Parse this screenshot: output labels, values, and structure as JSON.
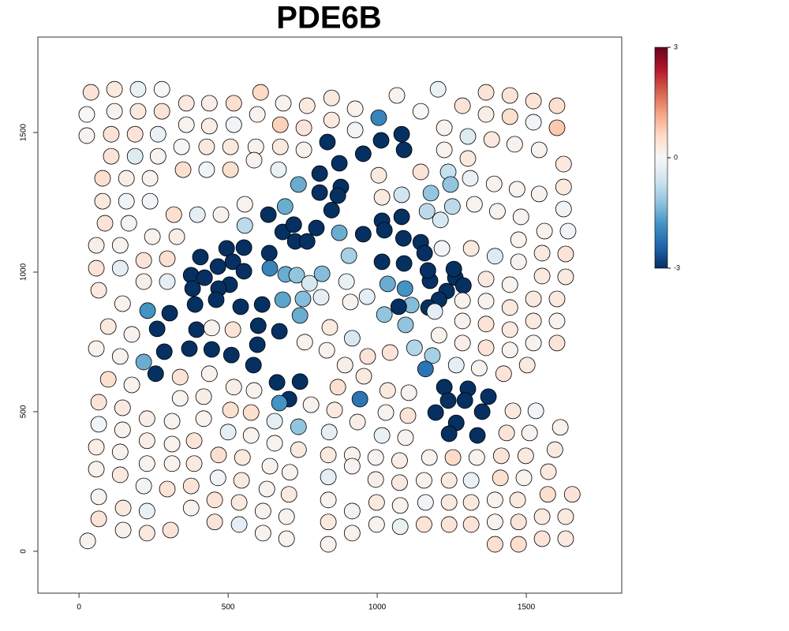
{
  "chart_data": {
    "type": "scatter",
    "title": "PDE6B",
    "xlim": [
      -138,
      1820
    ],
    "ylim": [
      -150,
      1842
    ],
    "xticks": [
      0,
      500,
      1000,
      1500
    ],
    "yticks": [
      0,
      500,
      1000,
      1500
    ],
    "color_scale": {
      "colors": [
        "#053061",
        "#2166ac",
        "#4393c3",
        "#92c5de",
        "#d1e5f0",
        "#f7f7f7",
        "#fddbc7",
        "#f4a582",
        "#d6604d",
        "#b2182b",
        "#67001f"
      ],
      "lim": [
        -3,
        3
      ],
      "ticks": [
        -3,
        0,
        3
      ]
    },
    "x": [
      40,
      119,
      198,
      278,
      609,
      847,
      1066,
      1204,
      1365,
      1445,
      1524,
      1603,
      360,
      437,
      519,
      685,
      765,
      926,
      1146,
      1286,
      26,
      119,
      198,
      278,
      598,
      1365,
      1445,
      1524,
      437,
      360,
      519,
      675,
      754,
      847,
      926,
      1005,
      1013,
      1082,
      1090,
      833,
      953,
      1225,
      1304,
      1603,
      26,
      108,
      188,
      265,
      344,
      428,
      508,
      593,
      675,
      754,
      1225,
      1304,
      1384,
      1461,
      1543,
      108,
      188,
      265,
      79,
      159,
      238,
      349,
      428,
      508,
      587,
      669,
      736,
      807,
      873,
      878,
      807,
      868,
      847,
      1005,
      1146,
      1238,
      1246,
      1312,
      1392,
      1469,
      1543,
      1625,
      1625,
      1625,
      79,
      159,
      238,
      318,
      397,
      476,
      556,
      556,
      635,
      691,
      683,
      720,
      725,
      765,
      796,
      1016,
      1082,
      1180,
      1167,
      1212,
      1252,
      1326,
      1016,
      1082,
      1024,
      953,
      873,
      1146,
      1088,
      1403,
      1482,
      1561,
      1640,
      87,
      167,
      246,
      328,
      58,
      138,
      58,
      138,
      217,
      296,
      66,
      146,
      217,
      296,
      407,
      495,
      553,
      516,
      638,
      640,
      376,
      421,
      466,
      553,
      505,
      381,
      468,
      460,
      389,
      542,
      614,
      693,
      730,
      773,
      683,
      751,
      812,
      815,
      897,
      910,
      966,
      905,
      1016,
      1090,
      1159,
      1217,
      1315,
      1395,
      1474,
      1474,
      1553,
      1632,
      1632,
      1553,
      1445,
      1365,
      1035,
      1093,
      1177,
      1170,
      1233,
      1262,
      1289,
      1257,
      1207,
      1172,
      1114,
      1072,
      1024,
      1095,
      1193,
      1286,
      1365,
      1445,
      1524,
      1603,
      1524,
      1603,
      1445,
      1365,
      1286,
      1207,
      1125,
      1185,
      1162,
      1265,
      1342,
      1424,
      1503,
      1603,
      1524,
      1445,
      1365,
      1286,
      230,
      304,
      262,
      394,
      601,
      598,
      585,
      511,
      445,
      370,
      286,
      257,
      217,
      672,
      741,
      757,
      841,
      831,
      916,
      968,
      1043,
      892,
      955,
      516,
      445,
      177,
      98,
      58,
      138,
      98,
      177,
      339,
      437,
      519,
      587,
      664,
      741,
      704,
      672,
      778,
      868,
      857,
      942,
      1035,
      1106,
      1029,
      1103,
      66,
      146,
      228,
      312,
      339,
      418,
      508,
      577,
      66,
      146,
      228,
      312,
      386,
      418,
      500,
      577,
      656,
      736,
      839,
      934,
      1016,
      1095,
      1225,
      1304,
      1238,
      1196,
      1294,
      1352,
      1373,
      1265,
      1241,
      1336,
      1455,
      1532,
      1434,
      1511,
      1614,
      1596,
      1498,
      1416,
      1334,
      1254,
      1175,
      1075,
      995,
      916,
      836,
      736,
      656,
      548,
      468,
      386,
      312,
      228,
      138,
      58,
      58,
      138,
      217,
      296,
      376,
      466,
      545,
      630,
      704,
      707,
      640,
      836,
      916,
      995,
      1075,
      1157,
      1241,
      1315,
      1413,
      1492,
      1574,
      1572,
      1654,
      1471,
      1395,
      1315,
      1241,
      1162,
      1077,
      998,
      916,
      836,
      696,
      617,
      537,
      455,
      376,
      228,
      148,
      66,
      66,
      148,
      228,
      307,
      455,
      537,
      617,
      696,
      836,
      916,
      998,
      1077,
      1157,
      1241,
      1315,
      1395,
      1474,
      1395,
      1474,
      1553,
      1553,
      1632,
      1632,
      836,
      29
    ],
    "y": [
      1644,
      1655,
      1655,
      1655,
      1644,
      1624,
      1633,
      1655,
      1644,
      1633,
      1613,
      1596,
      1605,
      1605,
      1605,
      1605,
      1596,
      1585,
      1576,
      1596,
      1565,
      1576,
      1576,
      1576,
      1565,
      1565,
      1557,
      1537,
      1523,
      1528,
      1528,
      1528,
      1517,
      1545,
      1509,
      1553,
      1472,
      1494,
      1438,
      1466,
      1424,
      1517,
      1486,
      1517,
      1489,
      1494,
      1494,
      1494,
      1449,
      1449,
      1449,
      1449,
      1449,
      1438,
      1438,
      1407,
      1475,
      1458,
      1438,
      1415,
      1415,
      1415,
      1336,
      1336,
      1336,
      1367,
      1367,
      1367,
      1401,
      1367,
      1314,
      1353,
      1390,
      1305,
      1285,
      1274,
      1222,
      1347,
      1359,
      1359,
      1314,
      1336,
      1316,
      1297,
      1280,
      1387,
      1305,
      1226,
      1254,
      1254,
      1254,
      1206,
      1206,
      1206,
      1243,
      1167,
      1206,
      1235,
      1144,
      1170,
      1110,
      1110,
      1158,
      1268,
      1277,
      1283,
      1218,
      1187,
      1235,
      1243,
      1184,
      1198,
      1150,
      1136,
      1141,
      1107,
      1121,
      1218,
      1198,
      1147,
      1147,
      1175,
      1175,
      1127,
      1127,
      1096,
      1096,
      1014,
      1014,
      1042,
      1048,
      935,
      887,
      966,
      966,
      1054,
      1085,
      1088,
      1037,
      1068,
      1014,
      989,
      980,
      1020,
      1003,
      955,
      941,
      941,
      901,
      884,
      876,
      884,
      992,
      989,
      960,
      901,
      904,
      910,
      994,
      966,
      893,
      912,
      1059,
      1037,
      1031,
      1068,
      1085,
      1085,
      1057,
      1116,
      1037,
      1068,
      1065,
      983,
      986,
      955,
      975,
      958,
      941,
      969,
      1006,
      932,
      980,
      952,
      1011,
      901,
      873,
      882,
      876,
      848,
      811,
      859,
      898,
      896,
      873,
      904,
      904,
      825,
      825,
      794,
      814,
      825,
      774,
      729,
      701,
      653,
      667,
      656,
      636,
      667,
      746,
      746,
      721,
      729,
      746,
      862,
      853,
      797,
      794,
      808,
      740,
      667,
      703,
      723,
      726,
      715,
      636,
      678,
      788,
      845,
      749,
      802,
      720,
      763,
      698,
      712,
      667,
      627,
      794,
      800,
      777,
      805,
      726,
      698,
      616,
      596,
      624,
      636,
      588,
      576,
      605,
      608,
      545,
      531,
      525,
      588,
      506,
      545,
      576,
      568,
      497,
      486,
      534,
      514,
      475,
      466,
      548,
      554,
      506,
      497,
      455,
      435,
      396,
      384,
      396,
      475,
      427,
      415,
      466,
      446,
      427,
      463,
      415,
      407,
      588,
      582,
      540,
      497,
      540,
      500,
      554,
      460,
      421,
      415,
      503,
      503,
      424,
      424,
      444,
      364,
      342,
      342,
      336,
      336,
      336,
      325,
      336,
      345,
      345,
      364,
      387,
      336,
      345,
      314,
      314,
      314,
      356,
      373,
      294,
      274,
      234,
      223,
      234,
      263,
      254,
      223,
      204,
      283,
      305,
      266,
      305,
      257,
      246,
      254,
      254,
      254,
      263,
      263,
      285,
      204,
      204,
      184,
      184,
      175,
      175,
      175,
      164,
      175,
      144,
      184,
      124,
      144,
      175,
      184,
      155,
      144,
      155,
      195,
      116,
      76,
      65,
      76,
      105,
      96,
      65,
      45,
      25,
      65,
      96,
      88,
      96,
      96,
      96,
      25,
      25,
      105,
      105,
      45,
      124,
      124,
      45,
      105,
      37
    ],
    "values": [
      0.4,
      0.3,
      -0.2,
      0,
      0.6,
      0.3,
      0.1,
      -0.2,
      0.4,
      0.4,
      0.4,
      0.5,
      0.3,
      0.2,
      0.5,
      0.1,
      0.3,
      0.1,
      0,
      0.4,
      0,
      0.1,
      0.3,
      0.4,
      0.1,
      0.2,
      0.5,
      -0.1,
      0.2,
      0.1,
      -0.1,
      0.7,
      0.4,
      0.3,
      -0.1,
      -2,
      -3,
      -3,
      -3,
      -3,
      -3,
      0.1,
      -0.4,
      0.8,
      0.1,
      0.4,
      0.4,
      -0.2,
      0,
      0.3,
      0.3,
      0.1,
      0.3,
      0.1,
      0.1,
      0.3,
      0.3,
      0.1,
      0.1,
      0.4,
      -0.4,
      0.1,
      0.5,
      0.2,
      0.1,
      0.5,
      -0.1,
      0.5,
      0.1,
      -0.2,
      -1.5,
      -3,
      -3,
      -3,
      -3,
      -3,
      -3,
      0.3,
      0.4,
      -0.7,
      -1.2,
      -0.2,
      0.1,
      0.1,
      0.1,
      0.3,
      0.3,
      -0.1,
      0.3,
      -0.1,
      -0.1,
      0.5,
      -0.3,
      0.1,
      0.1,
      -0.8,
      -3,
      -1.5,
      -3,
      -3,
      -3,
      -3,
      -3,
      0.3,
      -0.6,
      -1.2,
      -0.8,
      -0.5,
      -0.8,
      0.1,
      -3,
      -3,
      -3,
      -3,
      -1.5,
      -3,
      -3,
      0.1,
      0.1,
      0.1,
      -0.1,
      0.4,
      0.1,
      0.1,
      0.2,
      0.2,
      0.1,
      0.4,
      -0.3,
      0.4,
      0.5,
      0.3,
      0.1,
      0.2,
      -0.3,
      -3,
      -3,
      -3,
      -3,
      -3,
      -2,
      -3,
      -3,
      -3,
      -3,
      -3,
      -3,
      -3,
      -3,
      -3,
      -3,
      -3,
      -1.5,
      -1.2,
      -0.5,
      -1.6,
      -1.3,
      -0.3,
      -1.3,
      -0.2,
      0.1,
      -0.3,
      -1,
      -3,
      -3,
      -3,
      -0.1,
      0.3,
      -0.4,
      0.1,
      0.1,
      0.3,
      0.4,
      0.3,
      0.3,
      0.1,
      0.3,
      -1.5,
      -1.8,
      -3,
      -3,
      -3,
      -3,
      -3,
      -3,
      -3,
      -3,
      -1.3,
      -3,
      -1.2,
      -1.2,
      -0.3,
      0.1,
      0.1,
      0.3,
      0.3,
      0.3,
      0.3,
      0.1,
      0.3,
      0.4,
      0.1,
      0.1,
      -0.9,
      -1,
      -2.2,
      -0.3,
      0.1,
      0.4,
      0.3,
      0.4,
      0.1,
      0.1,
      0.4,
      0.2,
      -1.8,
      -3,
      -3,
      -3,
      -3,
      -3,
      -3,
      -3,
      -3,
      -3,
      -3,
      -3,
      -1.5,
      -3,
      -1.5,
      0.1,
      0.3,
      0.1,
      -0.5,
      0.4,
      0.4,
      0.2,
      0.3,
      0.4,
      0.1,
      0.1,
      0.3,
      0.1,
      0.1,
      0.5,
      0.1,
      0.4,
      0.1,
      0.2,
      0.1,
      -3,
      -3,
      -3,
      -1.8,
      0.1,
      0.5,
      0.3,
      -2.2,
      0.3,
      0.1,
      0.1,
      0.4,
      0.4,
      0.3,
      0.2,
      0.1,
      0.1,
      0.2,
      0.5,
      0.5,
      -0.1,
      0.1,
      0.2,
      0.1,
      0.4,
      0.1,
      -0.3,
      0.1,
      -0.3,
      -1.2,
      -0.3,
      0.2,
      -0.2,
      0.1,
      -3,
      -3,
      -3,
      -3,
      -3,
      -3,
      -3,
      -3,
      -3,
      -3,
      0.3,
      -0.1,
      0.4,
      0.1,
      0.1,
      0.3,
      0.3,
      0.4,
      0.1,
      0.6,
      0.1,
      0.2,
      0.1,
      0.1,
      0.3,
      0.3,
      0.1,
      0.3,
      0.5,
      0.3,
      0.1,
      0.1,
      0.1,
      0.2,
      0.1,
      0.3,
      -0.1,
      0.4,
      0.4,
      -0.1,
      0.3,
      0.1,
      0.3,
      0.1,
      0.1,
      -0.3,
      0.1,
      0.2,
      0.3,
      0.1,
      0.3,
      -0.2,
      0.5,
      0.1,
      0.3,
      0.5,
      0.4,
      0.3,
      0.1,
      0.3,
      0.3,
      -0.1,
      0.1,
      0.3,
      0.1,
      0.1,
      0.1,
      0.1,
      0.3,
      0.4,
      0.1,
      -0.2,
      0.3,
      0.1,
      0.4,
      0.1,
      0.3,
      0.4,
      0.4,
      -0.3,
      0.1,
      0.1,
      0.1,
      0.1,
      0.1,
      -0.2,
      0.4,
      0.4,
      0.4,
      0.5,
      0.5,
      0.1,
      0.4,
      0.4,
      0.3,
      0.3,
      0.3,
      0.3,
      0.1
    ]
  }
}
